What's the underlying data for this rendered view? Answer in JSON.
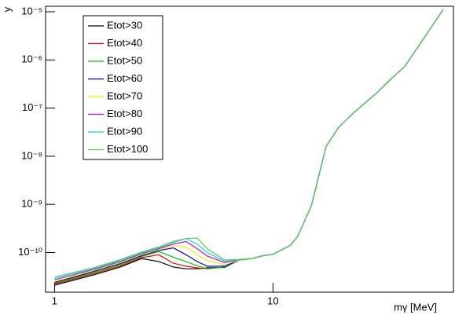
{
  "chart_data": {
    "type": "line",
    "x_label": "mγ [MeV]",
    "y_label": "y",
    "x": [
      1,
      1.5,
      2,
      2.5,
      3,
      3.5,
      4,
      4.5,
      5,
      6,
      7,
      8,
      9,
      10,
      11,
      12,
      13,
      15,
      17.5,
      20,
      23,
      27,
      30,
      35,
      40,
      50,
      60
    ],
    "series": [
      {
        "name": "Etot>30",
        "color": "#000000",
        "values": [
          2.1e-11,
          3.4e-11,
          5e-11,
          7.5e-11,
          6.5e-11,
          5e-11,
          4.6e-11,
          4.6e-11,
          4.8e-11,
          4.9e-11,
          7e-11,
          7.5e-11,
          8.6e-11,
          9.2e-11,
          1.15e-10,
          1.4e-10,
          2.2e-10,
          9.5e-10,
          1.6e-08,
          4e-08,
          7.4e-08,
          1.4e-07,
          2.1e-07,
          4.2e-07,
          7.2e-07,
          3.2e-06,
          1.1e-05
        ]
      },
      {
        "name": "Etot>40",
        "color": "#ff0000",
        "values": [
          2.2e-11,
          3.6e-11,
          5.3e-11,
          7.8e-11,
          9e-11,
          6e-11,
          5.2e-11,
          4.8e-11,
          4.6e-11,
          5e-11,
          7e-11,
          7.5e-11,
          8.6e-11,
          9.2e-11,
          1.15e-10,
          1.4e-10,
          2.2e-10,
          9.5e-10,
          1.6e-08,
          4e-08,
          7.4e-08,
          1.4e-07,
          2.1e-07,
          4.2e-07,
          7.2e-07,
          3.2e-06,
          1.1e-05
        ]
      },
      {
        "name": "Etot>50",
        "color": "#00cc00",
        "values": [
          2.3e-11,
          3.8e-11,
          5.6e-11,
          8.2e-11,
          1.05e-10,
          8e-11,
          6.5e-11,
          5.3e-11,
          4.6e-11,
          5e-11,
          7e-11,
          7.5e-11,
          8.6e-11,
          9.2e-11,
          1.15e-10,
          1.4e-10,
          2.2e-10,
          9.5e-10,
          1.6e-08,
          4e-08,
          7.4e-08,
          1.4e-07,
          2.1e-07,
          4.2e-07,
          7.2e-07,
          3.2e-06,
          1.1e-05
        ]
      },
      {
        "name": "Etot>60",
        "color": "#0000cc",
        "values": [
          2.4e-11,
          4e-11,
          5.9e-11,
          8.6e-11,
          1.1e-10,
          1.25e-10,
          9e-11,
          6.5e-11,
          5.2e-11,
          5.2e-11,
          7e-11,
          7.5e-11,
          8.6e-11,
          9.2e-11,
          1.15e-10,
          1.4e-10,
          2.2e-10,
          9.5e-10,
          1.6e-08,
          4e-08,
          7.4e-08,
          1.4e-07,
          2.1e-07,
          4.2e-07,
          7.2e-07,
          3.2e-06,
          1.1e-05
        ]
      },
      {
        "name": "Etot>70",
        "color": "#ffee00",
        "values": [
          2.5e-11,
          4.2e-11,
          6.2e-11,
          9e-11,
          1.15e-10,
          1.4e-10,
          1.3e-10,
          9e-11,
          6.8e-11,
          5.6e-11,
          7e-11,
          7.5e-11,
          8.6e-11,
          9.2e-11,
          1.15e-10,
          1.4e-10,
          2.2e-10,
          9.5e-10,
          1.6e-08,
          4e-08,
          7.4e-08,
          1.4e-07,
          2.1e-07,
          4.2e-07,
          7.2e-07,
          3.2e-06,
          1.1e-05
        ]
      },
      {
        "name": "Etot>80",
        "color": "#dd00dd",
        "values": [
          2.7e-11,
          4.4e-11,
          6.5e-11,
          9.4e-11,
          1.2e-10,
          1.5e-10,
          1.7e-10,
          1.2e-10,
          8.5e-11,
          6.2e-11,
          7.1e-11,
          7.5e-11,
          8.6e-11,
          9.2e-11,
          1.15e-10,
          1.4e-10,
          2.2e-10,
          9.5e-10,
          1.6e-08,
          4e-08,
          7.4e-08,
          1.4e-07,
          2.1e-07,
          4.2e-07,
          7.2e-07,
          3.2e-06,
          1.1e-05
        ]
      },
      {
        "name": "Etot>90",
        "color": "#00dddd",
        "values": [
          2.9e-11,
          4.6e-11,
          6.8e-11,
          9.8e-11,
          1.25e-10,
          1.6e-10,
          1.95e-10,
          1.5e-10,
          1e-10,
          6.6e-11,
          7.1e-11,
          7.5e-11,
          8.6e-11,
          9.2e-11,
          1.15e-10,
          1.4e-10,
          2.2e-10,
          9.5e-10,
          1.6e-08,
          4e-08,
          7.4e-08,
          1.4e-07,
          2.1e-07,
          4.2e-07,
          7.2e-07,
          3.2e-06,
          1.1e-05
        ]
      },
      {
        "name": "Etot>100",
        "color": "#55cc55",
        "values": [
          3.1e-11,
          4.8e-11,
          7.1e-11,
          1.02e-10,
          1.3e-10,
          1.7e-10,
          1.95e-10,
          2e-10,
          1.2e-10,
          7e-11,
          7.2e-11,
          7.5e-11,
          8.6e-11,
          9.2e-11,
          1.15e-10,
          1.4e-10,
          2.2e-10,
          9.5e-10,
          1.6e-08,
          4e-08,
          7.4e-08,
          1.4e-07,
          2.1e-07,
          4.2e-07,
          7.2e-07,
          3.2e-06,
          1.1e-05
        ]
      }
    ],
    "xlim": [
      0.91,
      67
    ],
    "ylim": [
      1.5e-11,
      1.3e-05
    ],
    "xticks": [
      1,
      10
    ],
    "yticks": [
      {
        "value": 1e-10,
        "label": "10⁻¹⁰"
      },
      {
        "value": 1e-09,
        "label": "10⁻⁹"
      },
      {
        "value": 1e-08,
        "label": "10⁻⁸"
      },
      {
        "value": 1e-07,
        "label": "10⁻⁷"
      },
      {
        "value": 1e-06,
        "label": "10⁻⁶"
      },
      {
        "value": 1e-05,
        "label": "10⁻⁵"
      }
    ],
    "xlog": true,
    "ylog": true,
    "legend": "upper left"
  }
}
